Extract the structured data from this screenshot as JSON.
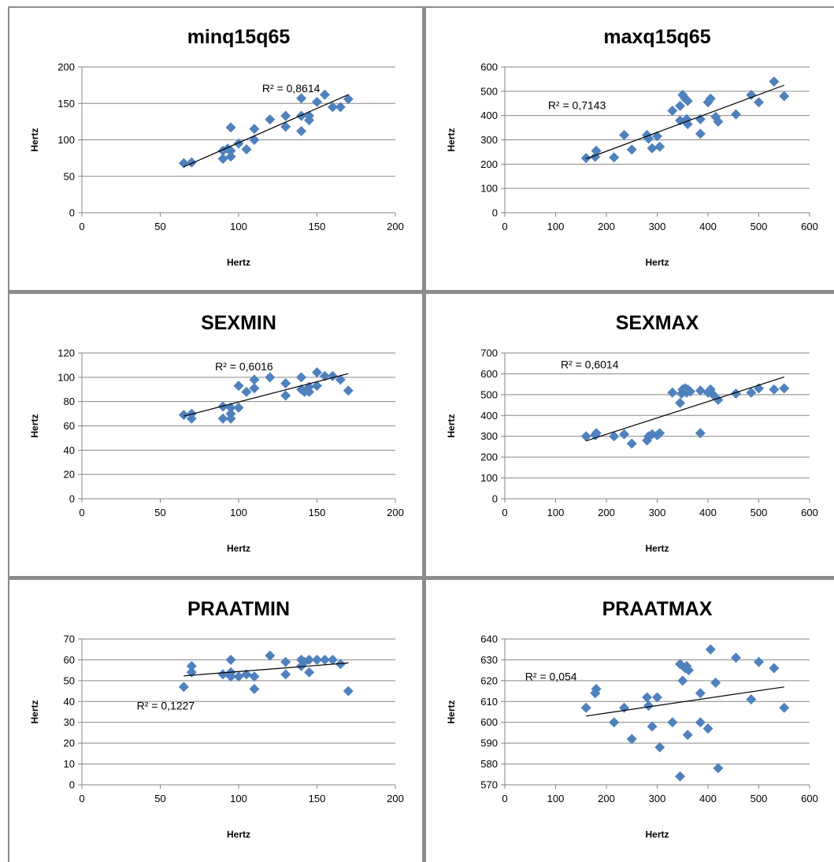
{
  "page": {
    "background": "#ffffff",
    "frame_color": "#8c8c8c"
  },
  "style": {
    "marker_color": "#4f81bd",
    "trendline_color": "#000000",
    "gridline_color": "#868686",
    "axis_text_color": "#000000"
  },
  "chart_data": [
    {
      "type": "scatter",
      "title": "minq15q65",
      "xlabel": "Hertz",
      "ylabel": "Hertz",
      "xlim": [
        0,
        200
      ],
      "ylim": [
        0,
        200
      ],
      "xticks": [
        0,
        50,
        100,
        150,
        200
      ],
      "yticks": [
        0,
        50,
        100,
        150,
        200
      ],
      "grid": "horizontal",
      "legend": "none",
      "trendline": {
        "type": "linear",
        "from": [
          65,
          63
        ],
        "to": [
          170,
          162
        ]
      },
      "r2_label": "R² = 0,8614",
      "r2_anchor": [
        115,
        171
      ],
      "series": [
        {
          "points": [
            [
              65,
              68
            ],
            [
              70,
              69
            ],
            [
              90,
              74
            ],
            [
              90,
              85
            ],
            [
              93,
              88
            ],
            [
              95,
              77
            ],
            [
              95,
              85
            ],
            [
              95,
              117
            ],
            [
              100,
              95
            ],
            [
              105,
              87
            ],
            [
              110,
              100
            ],
            [
              110,
              115
            ],
            [
              120,
              128
            ],
            [
              130,
              118
            ],
            [
              130,
              133
            ],
            [
              140,
              112
            ],
            [
              140,
              157
            ],
            [
              140,
              133
            ],
            [
              145,
              127
            ],
            [
              145,
              133
            ],
            [
              150,
              152
            ],
            [
              155,
              162
            ],
            [
              160,
              145
            ],
            [
              165,
              145
            ],
            [
              170,
              156
            ]
          ]
        }
      ]
    },
    {
      "type": "scatter",
      "title": "maxq15q65",
      "xlabel": "Hertz",
      "ylabel": "Hertz",
      "xlim": [
        0,
        600
      ],
      "ylim": [
        0,
        600
      ],
      "xticks": [
        0,
        100,
        200,
        300,
        400,
        500,
        600
      ],
      "yticks": [
        0,
        100,
        200,
        300,
        400,
        500,
        600
      ],
      "grid": "horizontal",
      "legend": "none",
      "trendline": {
        "type": "linear",
        "from": [
          160,
          222
        ],
        "to": [
          550,
          525
        ]
      },
      "r2_label": "R² = 0,7143",
      "r2_anchor": [
        85,
        443
      ],
      "series": [
        {
          "points": [
            [
              160,
              225
            ],
            [
              178,
              230
            ],
            [
              180,
              255
            ],
            [
              215,
              228
            ],
            [
              235,
              320
            ],
            [
              250,
              260
            ],
            [
              280,
              320
            ],
            [
              283,
              305
            ],
            [
              290,
              265
            ],
            [
              300,
              315
            ],
            [
              305,
              272
            ],
            [
              330,
              420
            ],
            [
              345,
              380
            ],
            [
              345,
              440
            ],
            [
              350,
              485
            ],
            [
              355,
              470
            ],
            [
              358,
              385
            ],
            [
              360,
              365
            ],
            [
              360,
              460
            ],
            [
              385,
              325
            ],
            [
              385,
              385
            ],
            [
              400,
              455
            ],
            [
              405,
              470
            ],
            [
              415,
              395
            ],
            [
              420,
              375
            ],
            [
              455,
              405
            ],
            [
              485,
              485
            ],
            [
              500,
              455
            ],
            [
              530,
              540
            ],
            [
              550,
              480
            ]
          ]
        }
      ]
    },
    {
      "type": "scatter",
      "title": "SEXMIN",
      "xlabel": "Hertz",
      "ylabel": "Hertz",
      "xlim": [
        0,
        200
      ],
      "ylim": [
        0,
        120
      ],
      "xticks": [
        0,
        50,
        100,
        150,
        200
      ],
      "yticks": [
        0,
        20,
        40,
        60,
        80,
        100,
        120
      ],
      "grid": "horizontal",
      "legend": "none",
      "trendline": {
        "type": "linear",
        "from": [
          65,
          68
        ],
        "to": [
          170,
          103
        ]
      },
      "r2_label": "R² = 0,6016",
      "r2_anchor": [
        85,
        109
      ],
      "series": [
        {
          "points": [
            [
              65,
              69
            ],
            [
              70,
              66
            ],
            [
              70,
              70
            ],
            [
              90,
              66
            ],
            [
              90,
              76
            ],
            [
              95,
              66
            ],
            [
              95,
              70
            ],
            [
              95,
              75
            ],
            [
              100,
              75
            ],
            [
              100,
              93
            ],
            [
              105,
              88
            ],
            [
              110,
              91
            ],
            [
              110,
              98
            ],
            [
              120,
              100
            ],
            [
              130,
              85
            ],
            [
              130,
              95
            ],
            [
              140,
              90
            ],
            [
              140,
              100
            ],
            [
              142,
              88
            ],
            [
              145,
              88
            ],
            [
              145,
              92
            ],
            [
              150,
              93
            ],
            [
              150,
              104
            ],
            [
              155,
              101
            ],
            [
              160,
              101
            ],
            [
              165,
              98
            ],
            [
              170,
              89
            ]
          ]
        }
      ]
    },
    {
      "type": "scatter",
      "title": "SEXMAX",
      "xlabel": "Hertz",
      "ylabel": "Hertz",
      "xlim": [
        0,
        600
      ],
      "ylim": [
        0,
        700
      ],
      "xticks": [
        0,
        100,
        200,
        300,
        400,
        500,
        600
      ],
      "yticks": [
        0,
        100,
        200,
        300,
        400,
        500,
        600,
        700
      ],
      "grid": "horizontal",
      "legend": "none",
      "trendline": {
        "type": "linear",
        "from": [
          160,
          278
        ],
        "to": [
          550,
          585
        ]
      },
      "r2_label": "R² = 0,6014",
      "r2_anchor": [
        110,
        645
      ],
      "series": [
        {
          "points": [
            [
              160,
              300
            ],
            [
              178,
              305
            ],
            [
              180,
              315
            ],
            [
              215,
              300
            ],
            [
              235,
              310
            ],
            [
              250,
              265
            ],
            [
              280,
              280
            ],
            [
              283,
              300
            ],
            [
              290,
              310
            ],
            [
              300,
              305
            ],
            [
              305,
              315
            ],
            [
              330,
              510
            ],
            [
              345,
              460
            ],
            [
              348,
              505
            ],
            [
              350,
              525
            ],
            [
              355,
              530
            ],
            [
              358,
              510
            ],
            [
              360,
              525
            ],
            [
              365,
              515
            ],
            [
              385,
              315
            ],
            [
              385,
              520
            ],
            [
              400,
              510
            ],
            [
              405,
              525
            ],
            [
              410,
              500
            ],
            [
              420,
              475
            ],
            [
              455,
              505
            ],
            [
              485,
              510
            ],
            [
              500,
              530
            ],
            [
              530,
              525
            ],
            [
              550,
              530
            ]
          ]
        }
      ]
    },
    {
      "type": "scatter",
      "title": "PRAATMIN",
      "xlabel": "Hertz",
      "ylabel": "Hertz",
      "xlim": [
        0,
        200
      ],
      "ylim": [
        0,
        70
      ],
      "xticks": [
        0,
        50,
        100,
        150,
        200
      ],
      "yticks": [
        0,
        10,
        20,
        30,
        40,
        50,
        60,
        70
      ],
      "grid": "horizontal",
      "legend": "none",
      "trendline": {
        "type": "linear",
        "from": [
          65,
          52.3
        ],
        "to": [
          170,
          58.5
        ]
      },
      "r2_label": "R² = 0,1227",
      "r2_anchor": [
        35,
        38
      ],
      "series": [
        {
          "points": [
            [
              65,
              47
            ],
            [
              70,
              54
            ],
            [
              70,
              57
            ],
            [
              90,
              53
            ],
            [
              95,
              52
            ],
            [
              95,
              54
            ],
            [
              95,
              60
            ],
            [
              100,
              52
            ],
            [
              105,
              53
            ],
            [
              110,
              46
            ],
            [
              110,
              52
            ],
            [
              120,
              62
            ],
            [
              130,
              53
            ],
            [
              130,
              59
            ],
            [
              140,
              57
            ],
            [
              140,
              60
            ],
            [
              142,
              59
            ],
            [
              145,
              54
            ],
            [
              145,
              60
            ],
            [
              150,
              60
            ],
            [
              155,
              60
            ],
            [
              160,
              60
            ],
            [
              165,
              58
            ],
            [
              170,
              45
            ]
          ]
        }
      ]
    },
    {
      "type": "scatter",
      "title": "PRAATMAX",
      "xlabel": "Hertz",
      "ylabel": "Hertz",
      "xlim": [
        0,
        600
      ],
      "ylim": [
        570,
        640
      ],
      "xticks": [
        0,
        100,
        200,
        300,
        400,
        500,
        600
      ],
      "yticks": [
        570,
        580,
        590,
        600,
        610,
        620,
        630,
        640
      ],
      "grid": "horizontal",
      "legend": "none",
      "trendline": {
        "type": "linear",
        "from": [
          160,
          603
        ],
        "to": [
          550,
          617
        ]
      },
      "r2_label": "R² = 0,054",
      "r2_anchor": [
        40,
        622
      ],
      "series": [
        {
          "points": [
            [
              160,
              607
            ],
            [
              178,
              614
            ],
            [
              180,
              616
            ],
            [
              215,
              600
            ],
            [
              235,
              607
            ],
            [
              250,
              592
            ],
            [
              280,
              612
            ],
            [
              283,
              608
            ],
            [
              290,
              598
            ],
            [
              300,
              612
            ],
            [
              305,
              588
            ],
            [
              330,
              600
            ],
            [
              345,
              574
            ],
            [
              345,
              628
            ],
            [
              350,
              620
            ],
            [
              355,
              626
            ],
            [
              358,
              627
            ],
            [
              360,
              594
            ],
            [
              362,
              625
            ],
            [
              385,
              600
            ],
            [
              385,
              614
            ],
            [
              400,
              597
            ],
            [
              405,
              635
            ],
            [
              415,
              619
            ],
            [
              420,
              578
            ],
            [
              455,
              631
            ],
            [
              485,
              611
            ],
            [
              500,
              629
            ],
            [
              530,
              626
            ],
            [
              550,
              607
            ]
          ]
        }
      ]
    }
  ]
}
